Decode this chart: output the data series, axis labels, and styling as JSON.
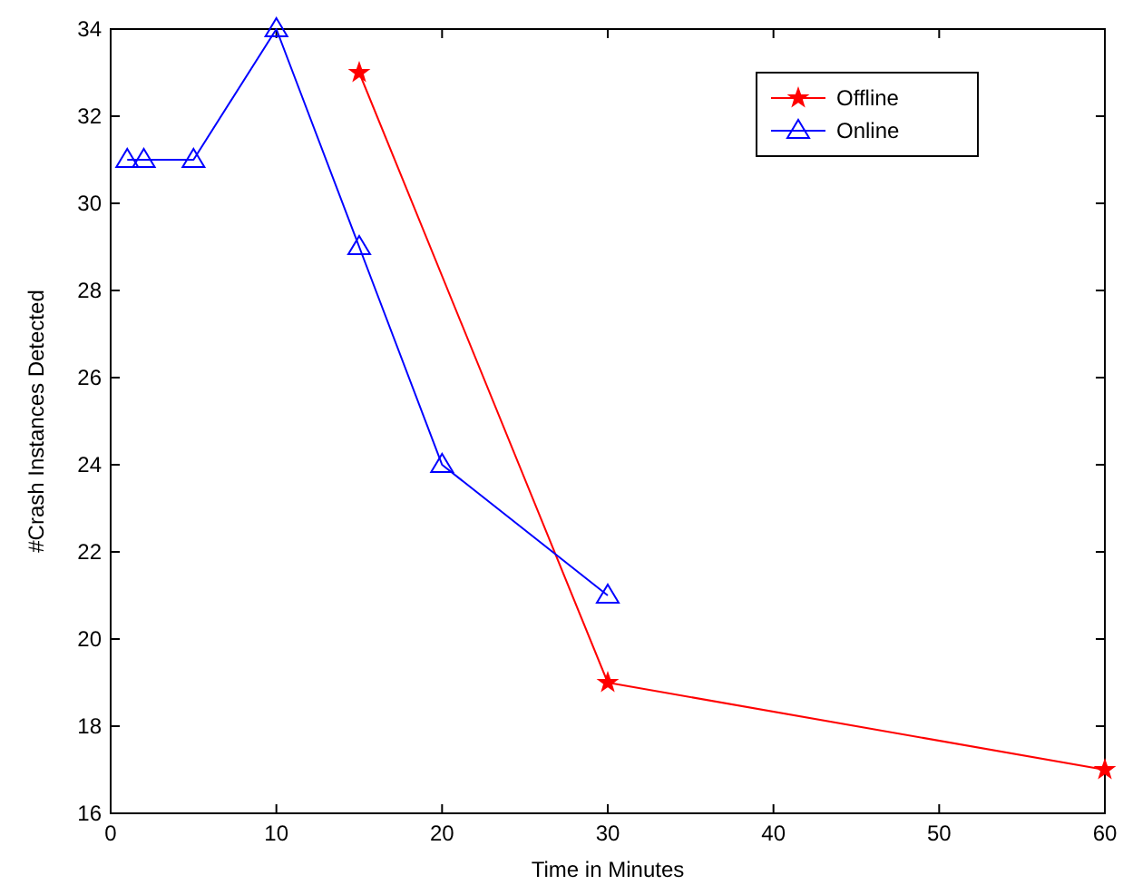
{
  "chart_data": {
    "type": "line",
    "xlabel": "Time in Minutes",
    "ylabel": "#Crash Instances Detected",
    "xlim": [
      0,
      60
    ],
    "xticks": [
      0,
      10,
      20,
      30,
      40,
      50,
      60
    ],
    "ylim": [
      16,
      34
    ],
    "yticks": [
      16,
      18,
      20,
      22,
      24,
      26,
      28,
      30,
      32,
      34
    ],
    "grid": false,
    "legend": "top right",
    "series": [
      {
        "name": "Offline",
        "color": "#ff0000",
        "marker": "star",
        "x": [
          15,
          30,
          60
        ],
        "values": [
          33,
          19,
          17
        ]
      },
      {
        "name": "Online",
        "color": "#0000ff",
        "marker": "triangle",
        "x": [
          1,
          2,
          5,
          10,
          15,
          20,
          30
        ],
        "values": [
          31,
          31,
          31,
          34,
          29,
          24,
          21
        ]
      }
    ]
  }
}
